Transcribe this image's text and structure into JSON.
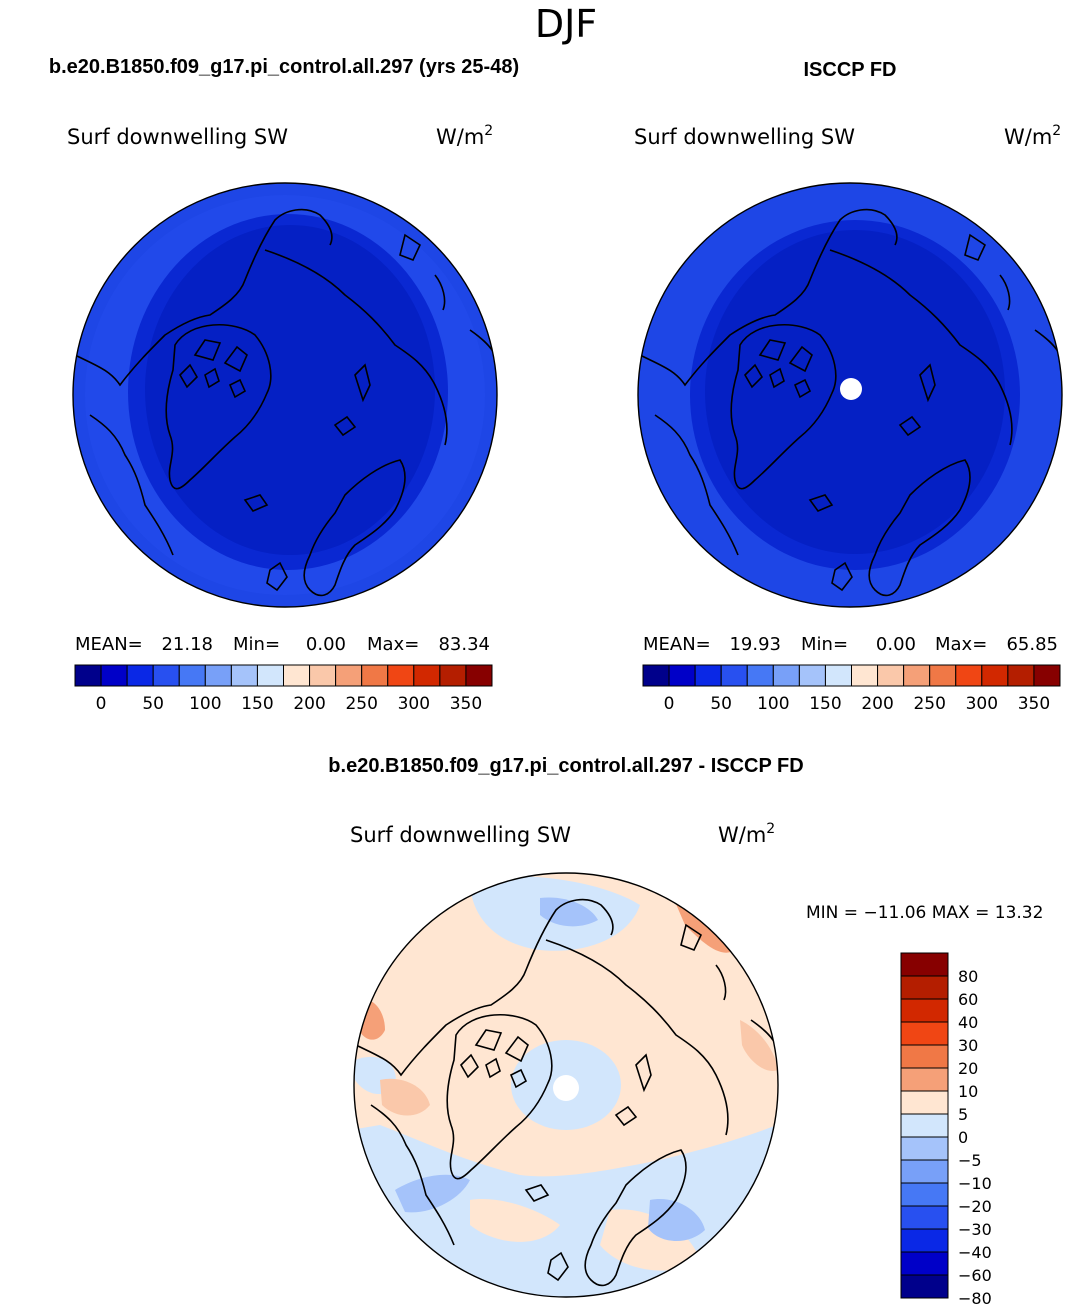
{
  "season": "DJF",
  "panels": [
    {
      "case_title": "b.e20.B1850.f09_g17.pi_control.all.297 (yrs 25-48)",
      "variable": "Surf downwelling SW",
      "units": "W/m",
      "units_sup": "2",
      "stats": {
        "mean_label": "MEAN=",
        "mean": "21.18",
        "min_label": "Min=",
        "min": "0.00",
        "max_label": "Max=",
        "max": "83.34"
      }
    },
    {
      "case_title": "ISCCP FD",
      "variable": "Surf downwelling SW",
      "units": "W/m",
      "units_sup": "2",
      "stats": {
        "mean_label": "MEAN=",
        "mean": "19.93",
        "min_label": "Min=",
        "min": "0.00",
        "max_label": "Max=",
        "max": "65.85"
      }
    }
  ],
  "abs_colorbar": {
    "colors": [
      "#00008b",
      "#0000c8",
      "#0a28e6",
      "#2850f0",
      "#4678f5",
      "#78a0f8",
      "#a5c3fa",
      "#d2e6fc",
      "#ffe6d2",
      "#fac8aa",
      "#f5a078",
      "#f07846",
      "#f04614",
      "#d22800",
      "#b41e00",
      "#870000"
    ],
    "tick_labels": [
      "0",
      "50",
      "100",
      "150",
      "200",
      "250",
      "300",
      "350"
    ]
  },
  "diff": {
    "title": "b.e20.B1850.f09_g17.pi_control.all.297 - ISCCP FD",
    "variable": "Surf downwelling SW",
    "units": "W/m",
    "units_sup": "2",
    "minmax": "MIN = −11.06 MAX =  13.32",
    "colors": [
      "#870000",
      "#b41e00",
      "#d22800",
      "#f04614",
      "#f07846",
      "#f5a078",
      "#ffe6d2",
      "#d2e6fc",
      "#a5c3fa",
      "#78a0f8",
      "#4678f5",
      "#2850f0",
      "#0a28e6",
      "#0000c8",
      "#00008b"
    ],
    "levels": [
      "80",
      "60",
      "40",
      "30",
      "20",
      "10",
      "5",
      "0",
      "−5",
      "−10",
      "−20",
      "−30",
      "−40",
      "−60",
      "−80"
    ]
  }
}
